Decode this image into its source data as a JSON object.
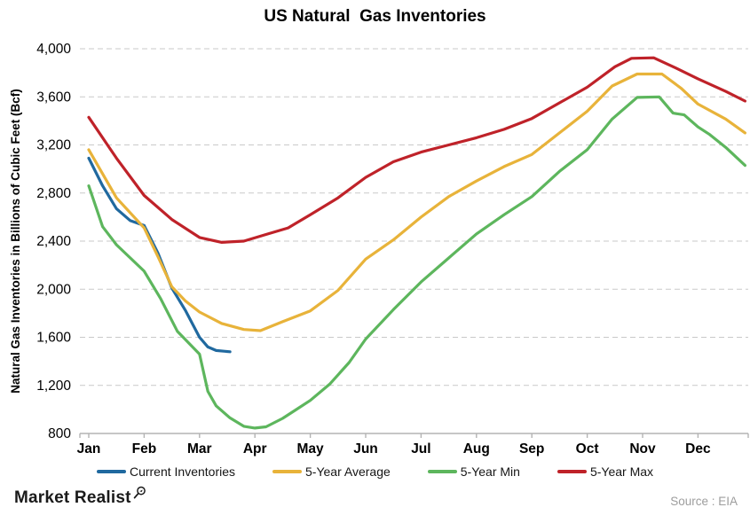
{
  "title": "US Natural  Gas Inventories",
  "source": {
    "text": "Source : EIA"
  },
  "logo": {
    "text": "Market Realist",
    "icon": "magnifier-icon"
  },
  "colors": {
    "current_inventories": "#20699f",
    "five_year_average": "#e8b33a",
    "five_year_min": "#5db65d",
    "five_year_max": "#bf2229",
    "gridline": "#c9c9c9",
    "axis": "#b3b3b3",
    "source_text": "#9d9d9d"
  },
  "chart_data": {
    "type": "line",
    "title": "US Natural  Gas Inventories",
    "xlabel": "",
    "ylabel": "Natural Gas Inventories in Billions of Cubic Feet (Bcf)",
    "ylim": [
      800,
      4000
    ],
    "yticks": [
      800,
      1200,
      1600,
      2000,
      2400,
      2800,
      3200,
      3600,
      4000
    ],
    "ytick_labels": [
      "800",
      "1,200",
      "1,600",
      "2,000",
      "2,400",
      "2,800",
      "3,200",
      "3,600",
      "4,000"
    ],
    "x_months": [
      "Jan",
      "Feb",
      "Mar",
      "Apr",
      "May",
      "Jun",
      "Jul",
      "Aug",
      "Sep",
      "Oct",
      "Nov",
      "Dec"
    ],
    "x_unit": "month index: 0 = Jan tick, 11 = Dec tick, fractional = weeks within month",
    "grid": "horizontal-dashed",
    "legend_position": "bottom",
    "series": [
      {
        "name": "Current Inventories",
        "color": "#20699f",
        "points": [
          [
            0,
            3090
          ],
          [
            0.25,
            2860
          ],
          [
            0.5,
            2670
          ],
          [
            0.75,
            2570
          ],
          [
            1.0,
            2530
          ],
          [
            1.25,
            2300
          ],
          [
            1.5,
            2010
          ],
          [
            1.75,
            1820
          ],
          [
            2.0,
            1600
          ],
          [
            2.15,
            1520
          ],
          [
            2.3,
            1490
          ],
          [
            2.55,
            1480
          ]
        ]
      },
      {
        "name": "5-Year Average",
        "color": "#e8b33a",
        "points": [
          [
            0,
            3160
          ],
          [
            0.5,
            2760
          ],
          [
            1.0,
            2510
          ],
          [
            1.25,
            2270
          ],
          [
            1.5,
            2020
          ],
          [
            1.75,
            1900
          ],
          [
            2.0,
            1810
          ],
          [
            2.4,
            1715
          ],
          [
            2.8,
            1665
          ],
          [
            3.1,
            1655
          ],
          [
            3.5,
            1730
          ],
          [
            4.0,
            1820
          ],
          [
            4.5,
            1990
          ],
          [
            5.0,
            2250
          ],
          [
            5.5,
            2410
          ],
          [
            6.0,
            2600
          ],
          [
            6.5,
            2770
          ],
          [
            7.0,
            2900
          ],
          [
            7.5,
            3020
          ],
          [
            8.0,
            3120
          ],
          [
            8.5,
            3300
          ],
          [
            9.0,
            3480
          ],
          [
            9.45,
            3690
          ],
          [
            9.9,
            3790
          ],
          [
            10.35,
            3790
          ],
          [
            10.7,
            3670
          ],
          [
            11.0,
            3540
          ],
          [
            11.5,
            3415
          ],
          [
            11.85,
            3300
          ]
        ]
      },
      {
        "name": "5-Year Min",
        "color": "#5db65d",
        "points": [
          [
            0,
            2860
          ],
          [
            0.25,
            2520
          ],
          [
            0.5,
            2370
          ],
          [
            0.75,
            2260
          ],
          [
            1.0,
            2150
          ],
          [
            1.3,
            1920
          ],
          [
            1.6,
            1650
          ],
          [
            2.0,
            1460
          ],
          [
            2.15,
            1150
          ],
          [
            2.3,
            1030
          ],
          [
            2.55,
            930
          ],
          [
            2.8,
            860
          ],
          [
            3.0,
            845
          ],
          [
            3.2,
            855
          ],
          [
            3.5,
            925
          ],
          [
            3.75,
            1000
          ],
          [
            4.0,
            1075
          ],
          [
            4.35,
            1210
          ],
          [
            4.7,
            1390
          ],
          [
            5.0,
            1585
          ],
          [
            5.5,
            1830
          ],
          [
            6.0,
            2060
          ],
          [
            6.5,
            2260
          ],
          [
            7.0,
            2460
          ],
          [
            7.5,
            2620
          ],
          [
            8.0,
            2770
          ],
          [
            8.5,
            2980
          ],
          [
            9.0,
            3160
          ],
          [
            9.45,
            3415
          ],
          [
            9.9,
            3595
          ],
          [
            10.3,
            3600
          ],
          [
            10.55,
            3465
          ],
          [
            10.75,
            3450
          ],
          [
            11.0,
            3350
          ],
          [
            11.2,
            3290
          ],
          [
            11.5,
            3180
          ],
          [
            11.85,
            3030
          ]
        ]
      },
      {
        "name": "5-Year Max",
        "color": "#bf2229",
        "points": [
          [
            0,
            3430
          ],
          [
            0.5,
            3090
          ],
          [
            1.0,
            2780
          ],
          [
            1.5,
            2580
          ],
          [
            2.0,
            2430
          ],
          [
            2.4,
            2390
          ],
          [
            2.8,
            2400
          ],
          [
            3.2,
            2455
          ],
          [
            3.6,
            2510
          ],
          [
            4.0,
            2620
          ],
          [
            4.5,
            2760
          ],
          [
            5.0,
            2930
          ],
          [
            5.5,
            3060
          ],
          [
            6.0,
            3140
          ],
          [
            6.5,
            3200
          ],
          [
            7.0,
            3260
          ],
          [
            7.5,
            3330
          ],
          [
            8.0,
            3420
          ],
          [
            8.5,
            3550
          ],
          [
            9.0,
            3680
          ],
          [
            9.5,
            3850
          ],
          [
            9.8,
            3920
          ],
          [
            10.2,
            3925
          ],
          [
            10.6,
            3840
          ],
          [
            11.0,
            3750
          ],
          [
            11.5,
            3645
          ],
          [
            11.85,
            3565
          ]
        ]
      }
    ]
  }
}
